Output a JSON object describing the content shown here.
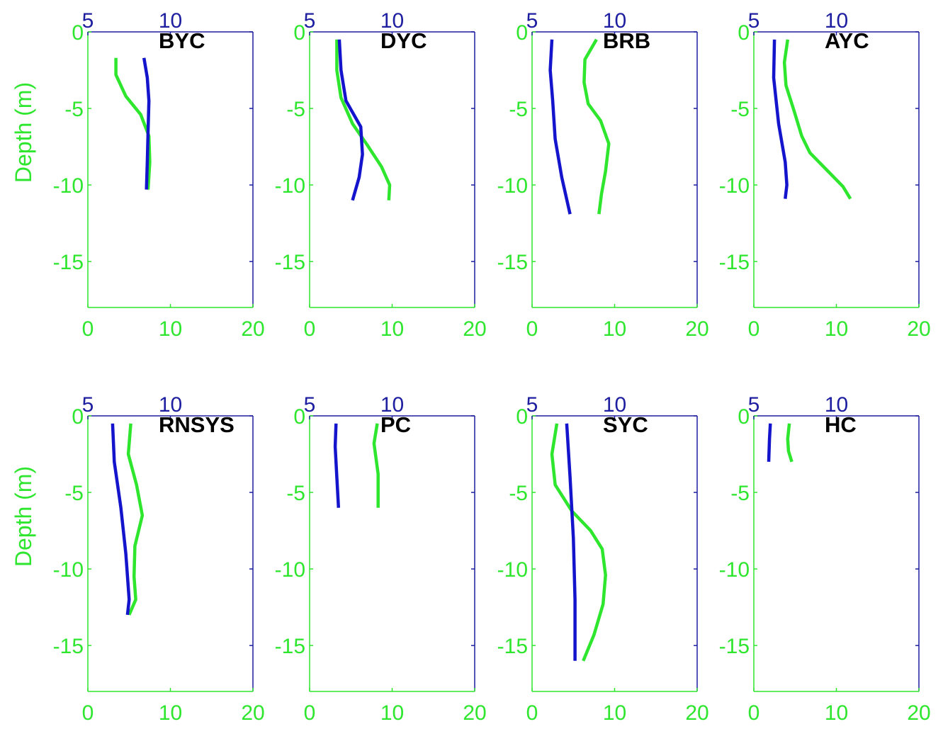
{
  "chart_data": [
    {
      "type": "line",
      "title": "BYC",
      "ylabel": "Depth (m)",
      "xlim_bottom": [
        0,
        20
      ],
      "xlim_top": [
        5,
        15
      ],
      "ylim": [
        -18,
        0
      ],
      "xticks_bottom": [
        "0",
        "10",
        "20"
      ],
      "xticks_top": [
        "5",
        "10"
      ],
      "yticks": [
        "0",
        "-5",
        "-10",
        "-15"
      ],
      "colors": {
        "bottom_series": "#2fe62f",
        "top_series": "#1414cc"
      },
      "series": [
        {
          "axis": "bottom",
          "points": [
            [
              3.4,
              -1.7
            ],
            [
              3.4,
              -2.8
            ],
            [
              4.6,
              -4.2
            ],
            [
              6.4,
              -5.4
            ],
            [
              7.4,
              -6.8
            ],
            [
              7.5,
              -8.5
            ],
            [
              7.3,
              -10.3
            ]
          ]
        },
        {
          "axis": "top",
          "points": [
            [
              8.4,
              -1.7
            ],
            [
              8.6,
              -3.0
            ],
            [
              8.7,
              -4.5
            ],
            [
              8.65,
              -6.5
            ],
            [
              8.6,
              -8.5
            ],
            [
              8.55,
              -10.3
            ]
          ]
        }
      ]
    },
    {
      "type": "line",
      "title": "DYC",
      "ylabel": "",
      "xlim_bottom": [
        0,
        20
      ],
      "xlim_top": [
        5,
        15
      ],
      "ylim": [
        -18,
        0
      ],
      "xticks_bottom": [
        "0",
        "10",
        "20"
      ],
      "xticks_top": [
        "5",
        "10"
      ],
      "yticks": [
        "0",
        "-5",
        "-10",
        "-15"
      ],
      "colors": {
        "bottom_series": "#2fe62f",
        "top_series": "#1414cc"
      },
      "series": [
        {
          "axis": "bottom",
          "points": [
            [
              3.3,
              -0.5
            ],
            [
              3.3,
              -2.5
            ],
            [
              3.8,
              -4.3
            ],
            [
              5.2,
              -6.0
            ],
            [
              7.0,
              -7.4
            ],
            [
              8.7,
              -8.8
            ],
            [
              9.7,
              -10.0
            ],
            [
              9.6,
              -11.0
            ]
          ]
        },
        {
          "axis": "top",
          "points": [
            [
              6.8,
              -0.5
            ],
            [
              6.9,
              -2.5
            ],
            [
              7.2,
              -4.5
            ],
            [
              8.1,
              -6.2
            ],
            [
              8.2,
              -8.0
            ],
            [
              8.0,
              -9.5
            ],
            [
              7.6,
              -11.0
            ]
          ]
        }
      ]
    },
    {
      "type": "line",
      "title": "BRB",
      "ylabel": "",
      "xlim_bottom": [
        0,
        20
      ],
      "xlim_top": [
        5,
        15
      ],
      "ylim": [
        -18,
        0
      ],
      "xticks_bottom": [
        "0",
        "10",
        "20"
      ],
      "xticks_top": [
        "5",
        "10"
      ],
      "yticks": [
        "0",
        "-5",
        "-10",
        "-15"
      ],
      "colors": {
        "bottom_series": "#2fe62f",
        "top_series": "#1414cc"
      },
      "series": [
        {
          "axis": "bottom",
          "points": [
            [
              7.8,
              -0.5
            ],
            [
              6.4,
              -1.8
            ],
            [
              6.3,
              -3.3
            ],
            [
              6.8,
              -4.7
            ],
            [
              8.3,
              -5.8
            ],
            [
              9.3,
              -7.3
            ],
            [
              8.9,
              -9.1
            ],
            [
              8.4,
              -10.6
            ],
            [
              8.1,
              -11.9
            ]
          ]
        },
        {
          "axis": "top",
          "points": [
            [
              6.2,
              -0.5
            ],
            [
              6.1,
              -2.5
            ],
            [
              6.25,
              -4.5
            ],
            [
              6.4,
              -7.0
            ],
            [
              6.8,
              -9.5
            ],
            [
              7.3,
              -11.9
            ]
          ]
        }
      ]
    },
    {
      "type": "line",
      "title": "AYC",
      "ylabel": "",
      "xlim_bottom": [
        0,
        20
      ],
      "xlim_top": [
        5,
        15
      ],
      "ylim": [
        -18,
        0
      ],
      "xticks_bottom": [
        "0",
        "10",
        "20"
      ],
      "xticks_top": [
        "5",
        "10"
      ],
      "yticks": [
        "0",
        "-5",
        "-10",
        "-15"
      ],
      "colors": {
        "bottom_series": "#2fe62f",
        "top_series": "#1414cc"
      },
      "series": [
        {
          "axis": "bottom",
          "points": [
            [
              4.1,
              -0.5
            ],
            [
              3.7,
              -2.0
            ],
            [
              3.9,
              -3.5
            ],
            [
              4.9,
              -5.2
            ],
            [
              5.8,
              -6.8
            ],
            [
              6.8,
              -7.9
            ],
            [
              8.8,
              -9.0
            ],
            [
              10.8,
              -10.1
            ],
            [
              11.7,
              -10.9
            ]
          ]
        },
        {
          "axis": "top",
          "points": [
            [
              6.25,
              -0.5
            ],
            [
              6.2,
              -3.0
            ],
            [
              6.5,
              -6.0
            ],
            [
              6.9,
              -8.5
            ],
            [
              7.0,
              -10.0
            ],
            [
              6.9,
              -10.9
            ]
          ]
        }
      ]
    },
    {
      "type": "line",
      "title": "RNSYS",
      "ylabel": "Depth (m)",
      "xlim_bottom": [
        0,
        20
      ],
      "xlim_top": [
        5,
        15
      ],
      "ylim": [
        -18,
        0
      ],
      "xticks_bottom": [
        "0",
        "10",
        "20"
      ],
      "xticks_top": [
        "5",
        "10"
      ],
      "yticks": [
        "0",
        "-5",
        "-10",
        "-15"
      ],
      "colors": {
        "bottom_series": "#2fe62f",
        "top_series": "#1414cc"
      },
      "series": [
        {
          "axis": "bottom",
          "points": [
            [
              5.2,
              -0.5
            ],
            [
              4.9,
              -2.5
            ],
            [
              5.9,
              -4.5
            ],
            [
              6.6,
              -6.5
            ],
            [
              5.7,
              -8.5
            ],
            [
              5.6,
              -10.5
            ],
            [
              5.8,
              -12.0
            ],
            [
              5.0,
              -13.0
            ]
          ]
        },
        {
          "axis": "top",
          "points": [
            [
              6.5,
              -0.5
            ],
            [
              6.6,
              -3.0
            ],
            [
              7.0,
              -6.0
            ],
            [
              7.3,
              -9.0
            ],
            [
              7.5,
              -12.0
            ],
            [
              7.4,
              -13.0
            ]
          ]
        }
      ]
    },
    {
      "type": "line",
      "title": "PC",
      "ylabel": "",
      "xlim_bottom": [
        0,
        20
      ],
      "xlim_top": [
        5,
        15
      ],
      "ylim": [
        -18,
        0
      ],
      "xticks_bottom": [
        "0",
        "10",
        "20"
      ],
      "xticks_top": [
        "5",
        "10"
      ],
      "yticks": [
        "0",
        "-5",
        "-10",
        "-15"
      ],
      "colors": {
        "bottom_series": "#2fe62f",
        "top_series": "#1414cc"
      },
      "series": [
        {
          "axis": "bottom",
          "points": [
            [
              8.2,
              -0.5
            ],
            [
              7.8,
              -1.8
            ],
            [
              8.3,
              -3.8
            ],
            [
              8.3,
              -6.0
            ]
          ]
        },
        {
          "axis": "top",
          "points": [
            [
              6.6,
              -0.5
            ],
            [
              6.55,
              -2.0
            ],
            [
              6.65,
              -4.0
            ],
            [
              6.75,
              -6.0
            ]
          ]
        }
      ]
    },
    {
      "type": "line",
      "title": "SYC",
      "ylabel": "",
      "xlim_bottom": [
        0,
        20
      ],
      "xlim_top": [
        5,
        15
      ],
      "ylim": [
        -18,
        0
      ],
      "xticks_bottom": [
        "0",
        "10",
        "20"
      ],
      "xticks_top": [
        "5",
        "10"
      ],
      "yticks": [
        "0",
        "-5",
        "-10",
        "-15"
      ],
      "colors": {
        "bottom_series": "#2fe62f",
        "top_series": "#1414cc"
      },
      "series": [
        {
          "axis": "bottom",
          "points": [
            [
              3.0,
              -0.5
            ],
            [
              2.4,
              -2.5
            ],
            [
              2.8,
              -4.5
            ],
            [
              4.8,
              -6.2
            ],
            [
              7.1,
              -7.5
            ],
            [
              8.5,
              -8.7
            ],
            [
              8.9,
              -10.4
            ],
            [
              8.6,
              -12.3
            ],
            [
              7.5,
              -14.3
            ],
            [
              6.2,
              -16.0
            ]
          ]
        },
        {
          "axis": "top",
          "points": [
            [
              7.1,
              -0.5
            ],
            [
              7.3,
              -4.0
            ],
            [
              7.5,
              -8.0
            ],
            [
              7.6,
              -12.0
            ],
            [
              7.6,
              -16.0
            ]
          ]
        }
      ]
    },
    {
      "type": "line",
      "title": "HC",
      "ylabel": "",
      "xlim_bottom": [
        0,
        20
      ],
      "xlim_top": [
        5,
        15
      ],
      "ylim": [
        -18,
        0
      ],
      "xticks_bottom": [
        "0",
        "10",
        "20"
      ],
      "xticks_top": [
        "5",
        "10"
      ],
      "yticks": [
        "0",
        "-5",
        "-10",
        "-15"
      ],
      "colors": {
        "bottom_series": "#2fe62f",
        "top_series": "#1414cc"
      },
      "series": [
        {
          "axis": "bottom",
          "points": [
            [
              4.3,
              -0.5
            ],
            [
              4.1,
              -1.5
            ],
            [
              4.2,
              -2.3
            ],
            [
              4.6,
              -3.0
            ]
          ]
        },
        {
          "axis": "top",
          "points": [
            [
              6.0,
              -0.5
            ],
            [
              5.95,
              -1.5
            ],
            [
              5.9,
              -3.0
            ]
          ]
        }
      ]
    }
  ]
}
